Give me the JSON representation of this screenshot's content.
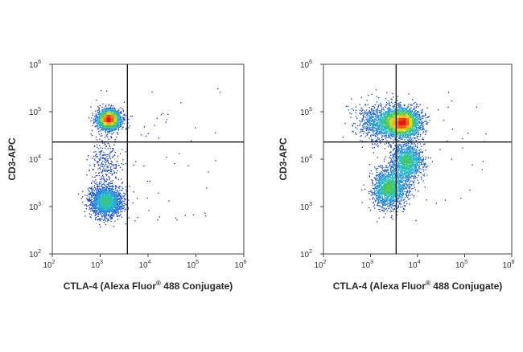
{
  "chart_data": [
    {
      "type": "scatter",
      "title": "",
      "xlabel": "CTLA-4 (Alexa Fluor® 488 Conjugate)",
      "ylabel": "CD3-APC",
      "x_scale": "log",
      "y_scale": "log",
      "xlim": [
        100,
        1000000
      ],
      "ylim": [
        100,
        1000000
      ],
      "x_ticks": [
        {
          "base": "10",
          "exp": "2"
        },
        {
          "base": "10",
          "exp": "3"
        },
        {
          "base": "10",
          "exp": "4"
        },
        {
          "base": "10",
          "exp": "5"
        },
        {
          "base": "10",
          "exp": "6"
        }
      ],
      "y_ticks": [
        {
          "base": "10",
          "exp": "2"
        },
        {
          "base": "10",
          "exp": "3"
        },
        {
          "base": "10",
          "exp": "4"
        },
        {
          "base": "10",
          "exp": "5"
        },
        {
          "base": "10",
          "exp": "6"
        }
      ],
      "quadrant_gate": {
        "x": 3700,
        "y": 23000
      },
      "grid": false,
      "colormap": "density (blue-cyan-green-yellow-red)",
      "populations": [
        {
          "x_center": 1500,
          "y_center": 70000,
          "x_spread_decades": 0.12,
          "y_spread_decades": 0.1,
          "relative_density": 1.0
        },
        {
          "x_center": 1300,
          "y_center": 1300,
          "x_spread_decades": 0.17,
          "y_spread_decades": 0.15,
          "relative_density": 0.75
        },
        {
          "x_center": 1200,
          "y_center": 8000,
          "x_spread_decades": 0.15,
          "y_spread_decades": 0.35,
          "relative_density": 0.08
        }
      ]
    },
    {
      "type": "scatter",
      "title": "",
      "xlabel": "CTLA-4 (Alexa Fluor® 488 Conjugate)",
      "ylabel": "CD3-APC",
      "x_scale": "log",
      "y_scale": "log",
      "xlim": [
        100,
        1000000
      ],
      "ylim": [
        100,
        1000000
      ],
      "x_ticks": [
        {
          "base": "10",
          "exp": "2"
        },
        {
          "base": "10",
          "exp": "3"
        },
        {
          "base": "10",
          "exp": "4"
        },
        {
          "base": "10",
          "exp": "5"
        },
        {
          "base": "10",
          "exp": "6"
        }
      ],
      "y_ticks": [
        {
          "base": "10",
          "exp": "2"
        },
        {
          "base": "10",
          "exp": "3"
        },
        {
          "base": "10",
          "exp": "4"
        },
        {
          "base": "10",
          "exp": "5"
        },
        {
          "base": "10",
          "exp": "6"
        }
      ],
      "quadrant_gate": {
        "x": 3500,
        "y": 23000
      },
      "grid": false,
      "colormap": "density (blue-cyan-green-yellow-red)",
      "populations": [
        {
          "x_center": 4500,
          "y_center": 60000,
          "x_spread_decades": 0.2,
          "y_spread_decades": 0.15,
          "relative_density": 1.0
        },
        {
          "x_center": 2500,
          "y_center": 2500,
          "x_spread_decades": 0.18,
          "y_spread_decades": 0.22,
          "relative_density": 0.6
        },
        {
          "x_center": 6000,
          "y_center": 9000,
          "x_spread_decades": 0.16,
          "y_spread_decades": 0.2,
          "relative_density": 0.45
        },
        {
          "x_center": 1500,
          "y_center": 60000,
          "x_spread_decades": 0.25,
          "y_spread_decades": 0.2,
          "relative_density": 0.3
        }
      ]
    }
  ]
}
